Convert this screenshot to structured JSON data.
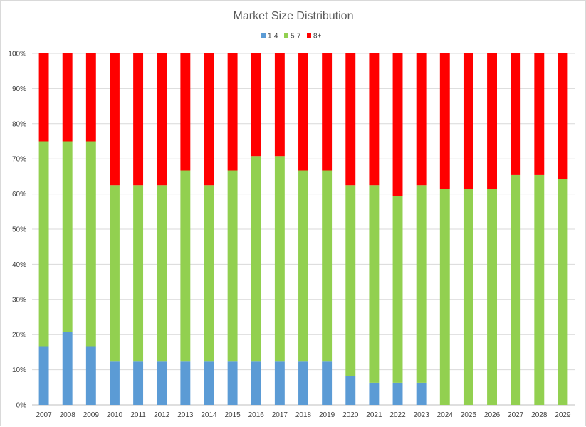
{
  "chart_data": {
    "type": "bar",
    "stacked": true,
    "percent": true,
    "title": "Market Size Distribution",
    "xlabel": "",
    "ylabel": "",
    "ylim": [
      0,
      100
    ],
    "yticks": [
      "0%",
      "10%",
      "20%",
      "30%",
      "40%",
      "50%",
      "60%",
      "70%",
      "80%",
      "90%",
      "100%"
    ],
    "grid": true,
    "legend": "top",
    "categories": [
      "2007",
      "2008",
      "2009",
      "2010",
      "2011",
      "2012",
      "2013",
      "2014",
      "2015",
      "2016",
      "2017",
      "2018",
      "2019",
      "2020",
      "2021",
      "2022",
      "2023",
      "2024",
      "2025",
      "2026",
      "2027",
      "2028",
      "2029"
    ],
    "series": [
      {
        "name": "1-4",
        "color": "#5b9bd5",
        "values": [
          16.7,
          20.8,
          16.7,
          12.5,
          12.5,
          12.5,
          12.5,
          12.5,
          12.5,
          12.5,
          12.5,
          12.5,
          12.5,
          8.3,
          6.3,
          6.3,
          6.3,
          0,
          0,
          0,
          0,
          0,
          0
        ]
      },
      {
        "name": "5-7",
        "color": "#92d050",
        "values": [
          58.3,
          54.2,
          58.3,
          50.0,
          50.0,
          50.0,
          54.2,
          50.0,
          54.2,
          58.3,
          58.3,
          54.2,
          54.2,
          54.2,
          56.2,
          53.1,
          56.2,
          61.5,
          61.5,
          61.5,
          65.4,
          65.4,
          64.3
        ]
      },
      {
        "name": "8+",
        "color": "#ff0000",
        "values": [
          25.0,
          25.0,
          25.0,
          37.5,
          37.5,
          37.5,
          33.3,
          37.5,
          33.3,
          29.2,
          29.2,
          33.3,
          33.3,
          37.5,
          37.5,
          40.6,
          37.5,
          38.5,
          38.5,
          38.5,
          34.6,
          34.6,
          35.7
        ]
      }
    ]
  }
}
